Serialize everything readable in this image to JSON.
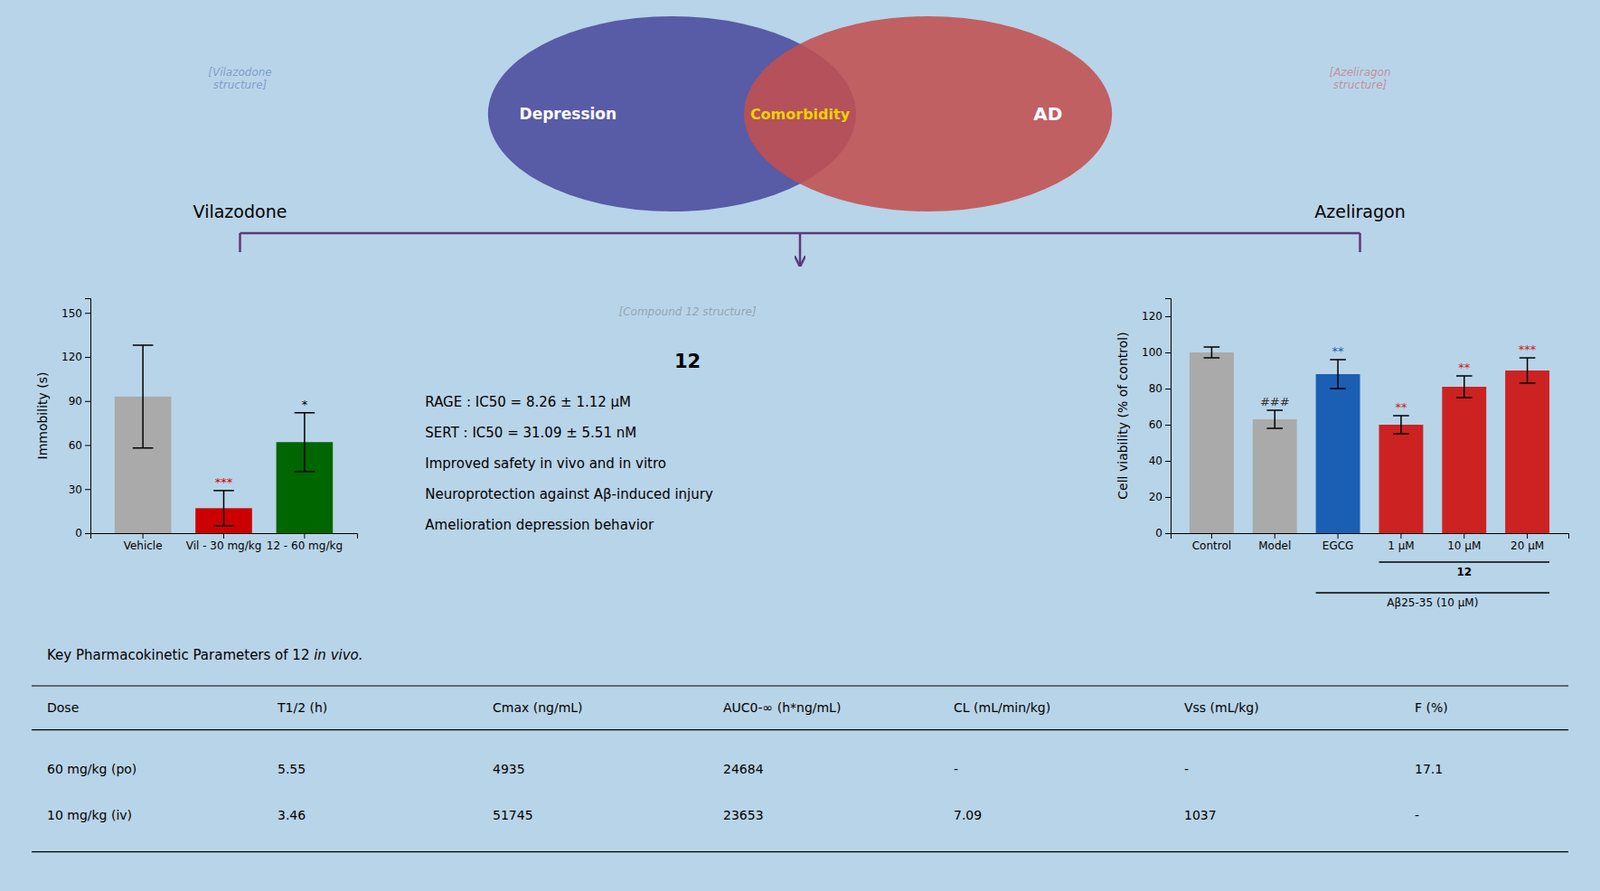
{
  "chart_data": [
    {
      "type": "bar",
      "categories": [
        "Vehicle",
        "Vil - 30 mg/kg",
        "12 - 60 mg/kg"
      ],
      "values": [
        93,
        17,
        62
      ],
      "errors": [
        35,
        12,
        20
      ],
      "colors": [
        "#aaaaaa",
        "#cc0000",
        "#006600"
      ],
      "ylabel": "Immobility (s)",
      "ylim": [
        0,
        160
      ],
      "yticks": [
        0,
        30,
        60,
        90,
        120,
        150
      ],
      "significance": [
        null,
        "***",
        "*"
      ],
      "significance_colors": [
        null,
        "#cc0000",
        "#000000"
      ]
    },
    {
      "type": "bar",
      "categories": [
        "Control",
        "Model",
        "EGCG",
        "1 μM",
        "10 μM",
        "20 μM"
      ],
      "values": [
        100,
        63,
        88,
        60,
        81,
        90
      ],
      "errors": [
        3,
        5,
        8,
        5,
        6,
        7
      ],
      "colors": [
        "#aaaaaa",
        "#aaaaaa",
        "#1a5fb4",
        "#cc2222",
        "#cc2222",
        "#cc2222"
      ],
      "ylabel": "Cell viability (% of control)",
      "ylim": [
        0,
        130
      ],
      "yticks": [
        0,
        20,
        40,
        60,
        80,
        100,
        120
      ],
      "significance": [
        null,
        "###",
        "**",
        "**",
        "**",
        "***"
      ],
      "significance_colors": [
        null,
        "#333333",
        "#1a5fb4",
        "#cc2222",
        "#cc2222",
        "#cc2222"
      ],
      "annotations": [
        {
          "text": "12",
          "categories": [
            "1 μM",
            "10 μM",
            "20 μM"
          ]
        },
        {
          "text": "Aβ25-35 (10 μM)",
          "categories": [
            "EGCG",
            "1 μM",
            "10 μM",
            "20 μM"
          ]
        }
      ]
    }
  ],
  "background_color": "#b8d4e8",
  "venn": {
    "sets": [
      {
        "text": "Depression",
        "color": "#4a4a9c"
      },
      {
        "text": "AD",
        "color": "#c05050"
      }
    ],
    "overlap": {
      "text": "Comorbidity",
      "color": "#f0d000"
    },
    "left_label": "Vilazodone",
    "right_label": "Azeliragon",
    "bracket_color": "#5a3a7a",
    "placeholders": [
      {
        "lines": [
          "[Vilazodone",
          "structure]"
        ],
        "color": "#2244aa"
      },
      {
        "lines": [
          "[Azeliragon",
          "structure]"
        ],
        "color": "#cc2222"
      }
    ]
  },
  "compound": {
    "placeholder": {
      "text": "[Compound 12 structure]",
      "color": "#444444"
    },
    "label": "12",
    "lines": [
      "RAGE : IC50 = 8.26 ± 1.12 μM",
      "SERT : IC50 = 31.09 ± 5.51 nM",
      "Improved safety in vivo and in vitro",
      "Neuroprotection against Aβ-induced injury",
      "Amelioration depression behavior"
    ]
  },
  "table": {
    "title": "Key Pharmacokinetic Parameters of 12 ",
    "title_italic": "in vivo.",
    "columns": [
      "Dose",
      "T1/2 (h)",
      "Cmax (ng/mL)",
      "AUC0-∞ (h*ng/mL)",
      "CL (mL/min/kg)",
      "Vss (mL/kg)",
      "F (%)"
    ],
    "rows": [
      [
        "60 mg/kg (po)",
        "5.55",
        "4935",
        "24684",
        "-",
        "-",
        "17.1"
      ],
      [
        "10 mg/kg (iv)",
        "3.46",
        "51745",
        "23653",
        "7.09",
        "1037",
        "-"
      ]
    ]
  }
}
